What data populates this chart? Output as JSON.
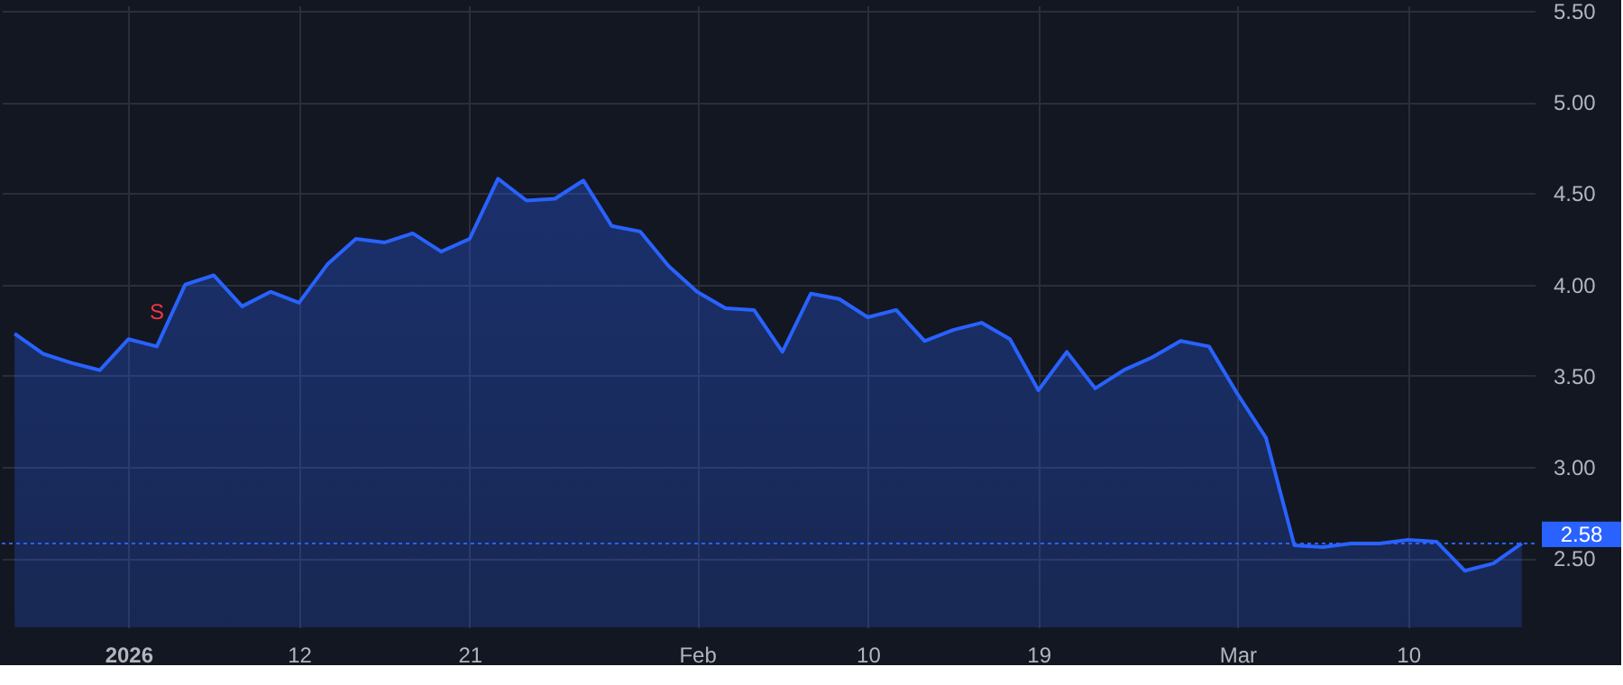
{
  "chart_data": {
    "type": "area",
    "categories": [
      null,
      null,
      null,
      null,
      "2026",
      null,
      null,
      null,
      null,
      null,
      "12",
      null,
      null,
      null,
      null,
      null,
      "21",
      null,
      null,
      null,
      null,
      null,
      null,
      null,
      "Feb",
      null,
      null,
      null,
      null,
      null,
      "10",
      null,
      null,
      null,
      null,
      null,
      "19",
      null,
      null,
      null,
      null,
      null,
      null,
      "Mar",
      null,
      null,
      null,
      null,
      null,
      "10",
      null,
      null,
      null,
      null
    ],
    "series": [
      {
        "color": "#2962ff",
        "values": [
          3.73,
          3.62,
          3.57,
          3.53,
          3.7,
          3.66,
          4.0,
          4.05,
          3.88,
          3.96,
          3.9,
          4.11,
          4.25,
          4.23,
          4.28,
          4.18,
          4.25,
          4.58,
          4.46,
          4.47,
          4.57,
          4.32,
          4.29,
          4.1,
          3.96,
          3.87,
          3.86,
          3.63,
          3.95,
          3.92,
          3.82,
          3.86,
          3.69,
          3.75,
          3.79,
          3.7,
          3.42,
          3.63,
          3.43,
          3.53,
          3.6,
          3.69,
          3.66,
          3.4,
          3.16,
          2.57,
          2.56,
          2.58,
          2.58,
          2.6,
          2.59,
          2.43,
          2.47,
          2.58
        ]
      }
    ],
    "ylim": [
      2.12,
      5.53
    ],
    "yticks": [
      {
        "value": 2.5,
        "label": "2.50"
      },
      {
        "value": 3.0,
        "label": "3.00"
      },
      {
        "value": 3.5,
        "label": "3.50"
      },
      {
        "value": 4.0,
        "label": "4.00"
      },
      {
        "value": 4.5,
        "label": "4.50"
      },
      {
        "value": 5.0,
        "label": "5.00"
      },
      {
        "value": 5.5,
        "label": "5.50"
      }
    ],
    "ref_lines": [
      {
        "axis": "y",
        "value": 2.58,
        "label": "2.58",
        "color": "#2962ff",
        "line_style": "dotted"
      }
    ],
    "annotations": [
      "S"
    ],
    "grid": true
  }
}
